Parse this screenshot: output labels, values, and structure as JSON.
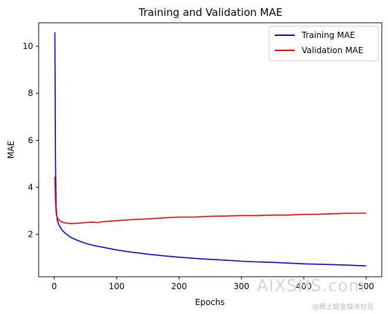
{
  "chart_data": {
    "type": "line",
    "title": "Training and Validation MAE",
    "xlabel": "Epochs",
    "ylabel": "MAE",
    "xlim": [
      -25,
      525
    ],
    "ylim": [
      0.2,
      11.0
    ],
    "xticks": [
      0,
      100,
      200,
      300,
      400,
      500
    ],
    "yticks": [
      2,
      4,
      6,
      8,
      10
    ],
    "grid": false,
    "legend_position": "top-right",
    "series": [
      {
        "name": "Training MAE",
        "color": "#0000cc",
        "x": [
          1,
          2,
          3,
          4,
          5,
          6,
          8,
          10,
          12,
          15,
          20,
          25,
          30,
          40,
          50,
          60,
          70,
          80,
          100,
          120,
          150,
          175,
          200,
          225,
          250,
          275,
          300,
          325,
          350,
          375,
          400,
          425,
          450,
          475,
          500
        ],
        "y": [
          10.6,
          5.0,
          3.2,
          2.8,
          2.6,
          2.5,
          2.38,
          2.3,
          2.2,
          2.12,
          2.0,
          1.9,
          1.83,
          1.72,
          1.62,
          1.55,
          1.49,
          1.44,
          1.34,
          1.26,
          1.16,
          1.09,
          1.03,
          0.98,
          0.94,
          0.9,
          0.86,
          0.83,
          0.81,
          0.78,
          0.75,
          0.73,
          0.71,
          0.69,
          0.66
        ]
      },
      {
        "name": "Validation MAE",
        "color": "#e00000",
        "x": [
          1,
          2,
          3,
          4,
          5,
          6,
          8,
          10,
          15,
          20,
          25,
          30,
          40,
          50,
          60,
          70,
          80,
          100,
          120,
          150,
          175,
          200,
          225,
          250,
          275,
          300,
          325,
          350,
          375,
          400,
          425,
          450,
          475,
          500
        ],
        "y": [
          4.45,
          3.4,
          2.9,
          2.78,
          2.72,
          2.65,
          2.6,
          2.56,
          2.5,
          2.48,
          2.47,
          2.46,
          2.48,
          2.5,
          2.52,
          2.5,
          2.55,
          2.58,
          2.62,
          2.66,
          2.7,
          2.74,
          2.74,
          2.77,
          2.78,
          2.8,
          2.8,
          2.82,
          2.82,
          2.85,
          2.86,
          2.88,
          2.9,
          2.9
        ]
      }
    ]
  },
  "watermark": {
    "main": "AIXSHS.com",
    "sub": "@稀土掘金技术社区"
  }
}
